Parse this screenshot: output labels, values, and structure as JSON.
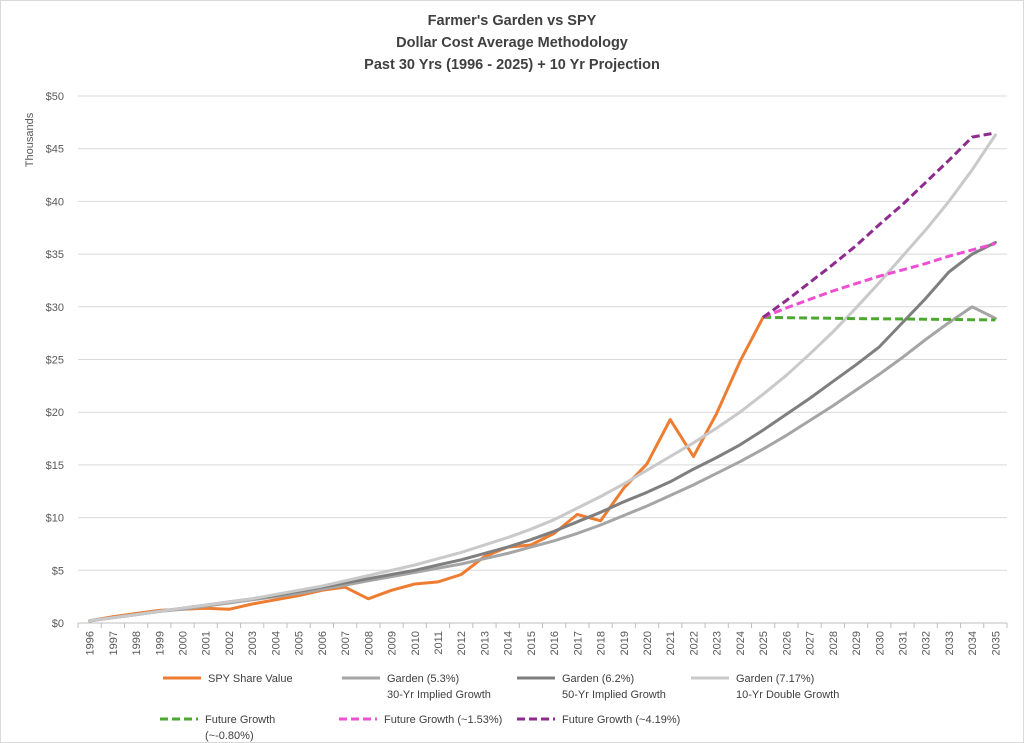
{
  "chart_data": {
    "type": "line",
    "title": "Farmer's Garden vs SPY",
    "subtitle1": "Dollar Cost Average Methodology",
    "subtitle2": "Past 30 Yrs (1996 -  2025) + 10 Yr Projection",
    "ylabel": "Thousands",
    "xlabel": "",
    "ylim": [
      0,
      50
    ],
    "yticks": [
      "$0",
      "$5",
      "$10",
      "$15",
      "$20",
      "$25",
      "$30",
      "$35",
      "$40",
      "$45",
      "$50"
    ],
    "grid": true,
    "legend_position": "bottom",
    "x": [
      "1996",
      "1997",
      "1998",
      "1999",
      "2000",
      "2001",
      "2002",
      "2003",
      "2004",
      "2005",
      "2006",
      "2007",
      "2008",
      "2009",
      "2010",
      "2011",
      "2012",
      "2013",
      "2014",
      "2015",
      "2016",
      "2017",
      "2018",
      "2019",
      "2020",
      "2021",
      "2022",
      "2023",
      "2024",
      "2025",
      "2026",
      "2027",
      "2028",
      "2029",
      "2030",
      "2031",
      "2032",
      "2033",
      "2034",
      "2035"
    ],
    "series": [
      {
        "name": "SPY Share Value",
        "color": "#ed7d31",
        "dash": false,
        "values": [
          0.2,
          0.6,
          0.9,
          1.2,
          1.3,
          1.4,
          1.3,
          1.8,
          2.2,
          2.6,
          3.1,
          3.4,
          2.3,
          3.1,
          3.7,
          3.9,
          4.6,
          6.3,
          7.2,
          7.4,
          8.5,
          10.3,
          9.7,
          12.8,
          15.1,
          19.3,
          15.8,
          19.9,
          24.8,
          29.0,
          null,
          null,
          null,
          null,
          null,
          null,
          null,
          null,
          null,
          null
        ]
      },
      {
        "name": "Garden (5.3%)",
        "name2": "30-Yr Implied Growth",
        "color": "#a5a5a5",
        "dash": false,
        "values": [
          0.2,
          0.5,
          0.8,
          1.1,
          1.3,
          1.6,
          1.9,
          2.2,
          2.5,
          2.8,
          3.2,
          3.6,
          4.0,
          4.4,
          4.8,
          5.2,
          5.6,
          6.1,
          6.6,
          7.2,
          7.8,
          8.5,
          9.3,
          10.2,
          11.1,
          12.1,
          13.1,
          14.2,
          15.3,
          16.5,
          17.8,
          19.2,
          20.6,
          22.1,
          23.6,
          25.2,
          26.9,
          28.5,
          30.0,
          28.9
        ]
      },
      {
        "name": "Garden (6.2%)",
        "name2": "50-Yr Implied Growth",
        "color": "#7f7f7f",
        "dash": false,
        "values": [
          0.2,
          0.5,
          0.8,
          1.1,
          1.4,
          1.7,
          2.0,
          2.3,
          2.6,
          3.0,
          3.4,
          3.8,
          4.2,
          4.6,
          5.0,
          5.5,
          6.0,
          6.6,
          7.2,
          7.9,
          8.7,
          9.6,
          10.5,
          11.5,
          12.4,
          13.4,
          14.6,
          15.7,
          16.9,
          18.3,
          19.8,
          21.3,
          22.9,
          24.5,
          26.2,
          28.5,
          30.8,
          33.3,
          35.0,
          36.1
        ]
      },
      {
        "name": "Garden (7.17%)",
        "name2": "10-Yr Double Growth",
        "color": "#c9c9c9",
        "dash": false,
        "values": [
          0.2,
          0.5,
          0.8,
          1.1,
          1.4,
          1.7,
          2.0,
          2.3,
          2.7,
          3.1,
          3.5,
          4.0,
          4.5,
          5.0,
          5.5,
          6.1,
          6.7,
          7.4,
          8.1,
          8.9,
          9.8,
          10.9,
          12.0,
          13.2,
          14.5,
          15.8,
          17.1,
          18.5,
          20.0,
          21.7,
          23.5,
          25.5,
          27.6,
          29.9,
          32.3,
          34.8,
          37.3,
          40.0,
          43.0,
          46.3
        ]
      },
      {
        "name": "Future Growth",
        "name2": "(~-0.80%)",
        "color": "#4da832",
        "dash": true,
        "values": [
          null,
          null,
          null,
          null,
          null,
          null,
          null,
          null,
          null,
          null,
          null,
          null,
          null,
          null,
          null,
          null,
          null,
          null,
          null,
          null,
          null,
          null,
          null,
          null,
          null,
          null,
          null,
          null,
          null,
          29.0,
          28.97,
          28.94,
          28.91,
          28.88,
          28.86,
          28.84,
          28.82,
          28.8,
          28.78,
          28.76
        ]
      },
      {
        "name": "Future Growth (~1.53%)",
        "color": "#ee4fd3",
        "dash": true,
        "values": [
          null,
          null,
          null,
          null,
          null,
          null,
          null,
          null,
          null,
          null,
          null,
          null,
          null,
          null,
          null,
          null,
          null,
          null,
          null,
          null,
          null,
          null,
          null,
          null,
          null,
          null,
          null,
          null,
          null,
          29.0,
          29.9,
          30.7,
          31.5,
          32.2,
          32.9,
          33.5,
          34.1,
          34.8,
          35.4,
          36.0
        ]
      },
      {
        "name": "Future Growth (~4.19%)",
        "color": "#8e2c8e",
        "dash": true,
        "values": [
          null,
          null,
          null,
          null,
          null,
          null,
          null,
          null,
          null,
          null,
          null,
          null,
          null,
          null,
          null,
          null,
          null,
          null,
          null,
          null,
          null,
          null,
          null,
          null,
          null,
          null,
          null,
          null,
          null,
          29.0,
          30.6,
          32.3,
          34.0,
          35.8,
          37.8,
          39.7,
          41.8,
          43.9,
          46.1,
          46.5
        ]
      }
    ]
  }
}
